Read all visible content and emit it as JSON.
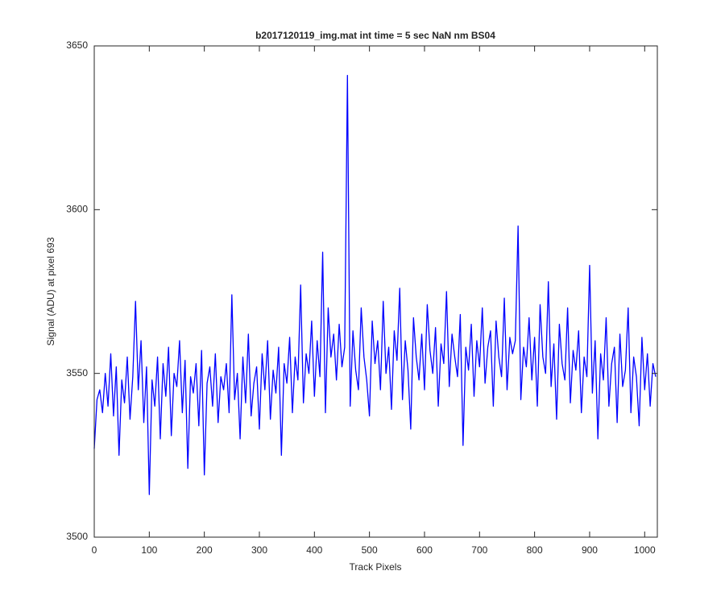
{
  "chart_data": {
    "type": "line",
    "title": "b2017120119_img.mat int time = 5 sec  NaN nm BS04",
    "xlabel": "Track Pixels",
    "ylabel": "Signal (ADU) at pixel 693",
    "xlim": [
      0,
      1023
    ],
    "ylim": [
      3500,
      3650
    ],
    "xticks": [
      0,
      100,
      200,
      300,
      400,
      500,
      600,
      700,
      800,
      900,
      1000
    ],
    "yticks": [
      3500,
      3550,
      3600,
      3650
    ],
    "grid": false,
    "x": [
      0,
      5,
      10,
      15,
      20,
      25,
      30,
      35,
      40,
      45,
      50,
      55,
      60,
      65,
      70,
      75,
      80,
      85,
      90,
      95,
      100,
      105,
      110,
      115,
      120,
      125,
      130,
      135,
      140,
      145,
      150,
      155,
      160,
      165,
      170,
      175,
      180,
      185,
      190,
      195,
      200,
      205,
      210,
      215,
      220,
      225,
      230,
      235,
      240,
      245,
      250,
      255,
      260,
      265,
      270,
      275,
      280,
      285,
      290,
      295,
      300,
      305,
      310,
      315,
      320,
      325,
      330,
      335,
      340,
      345,
      350,
      355,
      360,
      365,
      370,
      375,
      380,
      385,
      390,
      395,
      400,
      405,
      410,
      415,
      420,
      425,
      430,
      435,
      440,
      445,
      450,
      455,
      460,
      465,
      470,
      475,
      480,
      485,
      490,
      495,
      500,
      505,
      510,
      515,
      520,
      525,
      530,
      535,
      540,
      545,
      550,
      555,
      560,
      565,
      570,
      575,
      580,
      585,
      590,
      595,
      600,
      605,
      610,
      615,
      620,
      625,
      630,
      635,
      640,
      645,
      650,
      655,
      660,
      665,
      670,
      675,
      680,
      685,
      690,
      695,
      700,
      705,
      710,
      715,
      720,
      725,
      730,
      735,
      740,
      745,
      750,
      755,
      760,
      765,
      770,
      775,
      780,
      785,
      790,
      795,
      800,
      805,
      810,
      815,
      820,
      825,
      830,
      835,
      840,
      845,
      850,
      855,
      860,
      865,
      870,
      875,
      880,
      885,
      890,
      895,
      900,
      905,
      910,
      915,
      920,
      925,
      930,
      935,
      940,
      945,
      950,
      955,
      960,
      965,
      970,
      975,
      980,
      985,
      990,
      995,
      1000,
      1005,
      1010,
      1015,
      1020
    ],
    "series": [
      {
        "color": "#0000ff",
        "values": [
          3527,
          3542,
          3545,
          3538,
          3550,
          3540,
          3556,
          3537,
          3552,
          3525,
          3548,
          3541,
          3555,
          3536,
          3549,
          3572,
          3545,
          3560,
          3535,
          3552,
          3513,
          3548,
          3540,
          3555,
          3530,
          3553,
          3543,
          3558,
          3531,
          3550,
          3546,
          3560,
          3538,
          3554,
          3521,
          3549,
          3544,
          3553,
          3534,
          3557,
          3519,
          3547,
          3552,
          3540,
          3556,
          3535,
          3549,
          3545,
          3553,
          3538,
          3574,
          3542,
          3550,
          3530,
          3555,
          3541,
          3562,
          3537,
          3547,
          3552,
          3533,
          3556,
          3545,
          3560,
          3536,
          3551,
          3544,
          3558,
          3525,
          3553,
          3547,
          3561,
          3538,
          3555,
          3548,
          3577,
          3541,
          3556,
          3550,
          3566,
          3543,
          3560,
          3549,
          3587,
          3538,
          3570,
          3555,
          3562,
          3548,
          3565,
          3552,
          3558,
          3641,
          3540,
          3563,
          3551,
          3545,
          3570,
          3555,
          3548,
          3537,
          3566,
          3553,
          3560,
          3545,
          3572,
          3550,
          3558,
          3539,
          3563,
          3554,
          3576,
          3542,
          3560,
          3551,
          3533,
          3567,
          3555,
          3548,
          3562,
          3545,
          3571,
          3557,
          3550,
          3564,
          3540,
          3559,
          3553,
          3575,
          3546,
          3562,
          3555,
          3549,
          3568,
          3528,
          3558,
          3551,
          3565,
          3543,
          3560,
          3552,
          3570,
          3547,
          3558,
          3563,
          3540,
          3566,
          3555,
          3549,
          3573,
          3545,
          3561,
          3556,
          3560,
          3595,
          3542,
          3558,
          3552,
          3567,
          3548,
          3561,
          3540,
          3571,
          3555,
          3550,
          3578,
          3546,
          3559,
          3536,
          3565,
          3553,
          3548,
          3570,
          3541,
          3557,
          3551,
          3563,
          3538,
          3555,
          3549,
          3583,
          3544,
          3560,
          3530,
          3556,
          3548,
          3567,
          3540,
          3553,
          3558,
          3535,
          3562,
          3546,
          3551,
          3570,
          3538,
          3555,
          3549,
          3534,
          3561,
          3545,
          3556,
          3540,
          3553,
          3549
        ]
      }
    ]
  }
}
